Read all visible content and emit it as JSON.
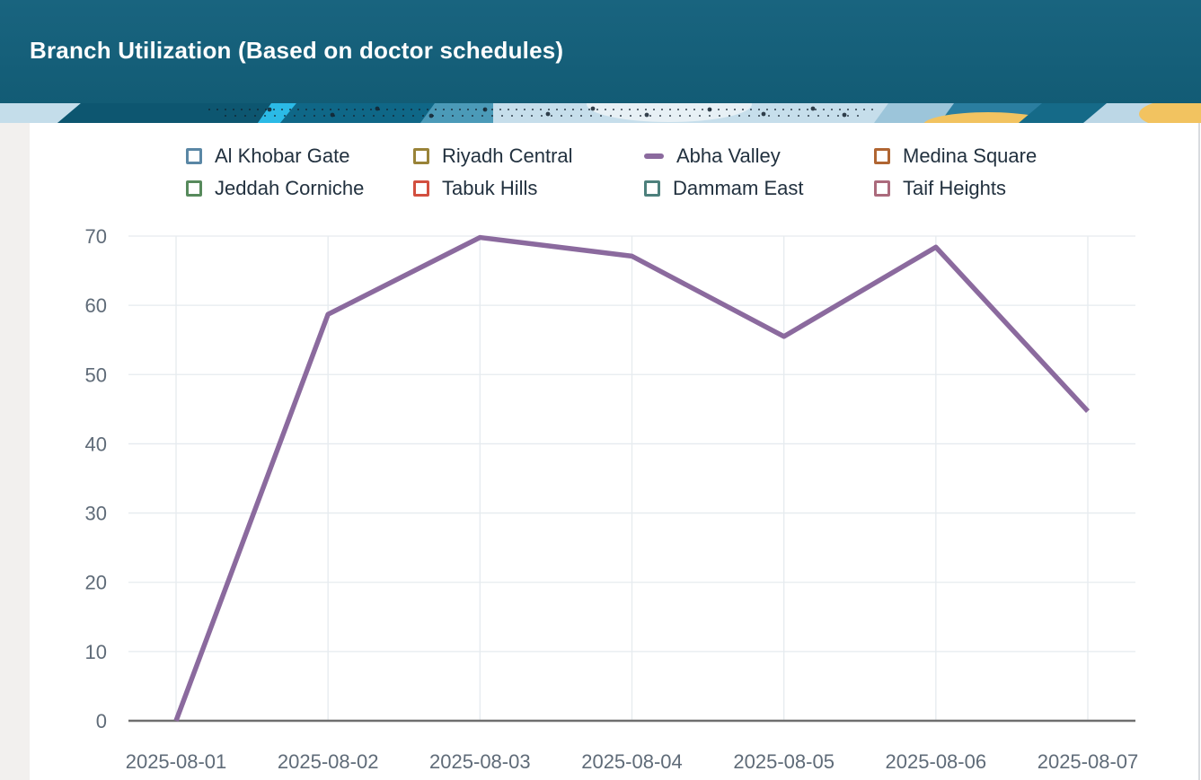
{
  "header": {
    "title": "Branch Utilization (Based on doctor schedules)"
  },
  "theme": {
    "header_bg": "#125d77",
    "page_bg": "#f2f0ee",
    "card_bg": "#ffffff",
    "grid_color": "#e6ebef",
    "axis_line_color": "#6f6f6f",
    "axis_label_color": "#5f6b78",
    "legend_text_color": "#22313f",
    "active_series_color": "#8b6a9e"
  },
  "chart_data": {
    "type": "line",
    "title": "Branch Utilization (Based on doctor schedules)",
    "categories": [
      "2025-08-01",
      "2025-08-02",
      "2025-08-03",
      "2025-08-04",
      "2025-08-05",
      "2025-08-06",
      "2025-08-07"
    ],
    "xlabel": "",
    "ylabel": "",
    "ylim": [
      0,
      70
    ],
    "y_ticks": [
      0,
      10,
      20,
      30,
      40,
      50,
      60,
      70
    ],
    "grid": true,
    "legend_position": "top",
    "series": [
      {
        "name": "Al Khobar Gate",
        "color": "#5a87a5",
        "visible": false,
        "marker": "square-outline",
        "values": null
      },
      {
        "name": "Riyadh Central",
        "color": "#998338",
        "visible": false,
        "marker": "square-outline",
        "values": null
      },
      {
        "name": "Abha Valley",
        "color": "#8b6a9e",
        "visible": true,
        "marker": "line",
        "values": [
          0,
          58.7,
          69.8,
          67.1,
          55.5,
          68.4,
          44.7
        ]
      },
      {
        "name": "Medina Square",
        "color": "#b06532",
        "visible": false,
        "marker": "square-outline",
        "values": null
      },
      {
        "name": "Jeddah Corniche",
        "color": "#578a5c",
        "visible": false,
        "marker": "square-outline",
        "values": null
      },
      {
        "name": "Tabuk Hills",
        "color": "#d24f3f",
        "visible": false,
        "marker": "square-outline",
        "values": null
      },
      {
        "name": "Dammam East",
        "color": "#4d807c",
        "visible": false,
        "marker": "square-outline",
        "values": null
      },
      {
        "name": "Taif Heights",
        "color": "#ab6a7c",
        "visible": false,
        "marker": "square-outline",
        "values": null
      }
    ]
  }
}
